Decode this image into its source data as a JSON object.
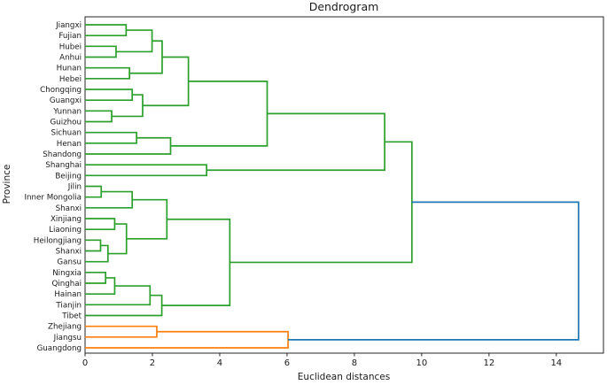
{
  "title": "Dendrogram",
  "xlabel": "Euclidean distances",
  "ylabel": "Province",
  "chart_data": {
    "type": "dendrogram",
    "orientation": "leaves-left",
    "grid": false,
    "legend": "none",
    "xlim": [
      0,
      15.4
    ],
    "x_ticks": [
      0,
      2,
      4,
      6,
      8,
      10,
      12,
      14
    ],
    "leaves": [
      "Jiangxi",
      "Fujian",
      "Hubei",
      "Anhui",
      "Hunan",
      "Hebei",
      "Chongqing",
      "Guangxi",
      "Yunnan",
      "Guizhou",
      "Sichuan",
      "Henan",
      "Shandong",
      "Shanghai",
      "Beijing",
      "Jilin",
      "Inner Mongolia",
      "Shanxi",
      "Xinjiang",
      "Liaoning",
      "Heilongjiang",
      "Shanxi",
      "Gansu",
      "Ningxia",
      "Qinghai",
      "Hainan",
      "Tianjin",
      "Tibet",
      "Zhejiang",
      "Jiangsu",
      "Guangdong"
    ],
    "merges": [
      [
        "L0",
        "L1",
        1.22,
        "green"
      ],
      [
        "L2",
        "L3",
        0.92,
        "green"
      ],
      [
        "M0",
        "M1",
        1.99,
        "green"
      ],
      [
        "L4",
        "L5",
        1.32,
        "green"
      ],
      [
        "M2",
        "M3",
        2.29,
        "green"
      ],
      [
        "L6",
        "L7",
        1.4,
        "green"
      ],
      [
        "L8",
        "L9",
        0.79,
        "green"
      ],
      [
        "M5",
        "M6",
        1.71,
        "green"
      ],
      [
        "M4",
        "M7",
        3.07,
        "green"
      ],
      [
        "L10",
        "L11",
        1.53,
        "green"
      ],
      [
        "M9",
        "L12",
        2.54,
        "green"
      ],
      [
        "M8",
        "M10",
        5.41,
        "green"
      ],
      [
        "L13",
        "L14",
        3.61,
        "green"
      ],
      [
        "M11",
        "M12",
        8.9,
        "green"
      ],
      [
        "L15",
        "L16",
        0.48,
        "green"
      ],
      [
        "M14",
        "L17",
        1.4,
        "green"
      ],
      [
        "L18",
        "L19",
        0.88,
        "green"
      ],
      [
        "L20",
        "L21",
        0.46,
        "green"
      ],
      [
        "M17",
        "L22",
        0.68,
        "green"
      ],
      [
        "M16",
        "M18",
        1.23,
        "green"
      ],
      [
        "M15",
        "M19",
        2.43,
        "green"
      ],
      [
        "L23",
        "L24",
        0.61,
        "green"
      ],
      [
        "M21",
        "L25",
        0.88,
        "green"
      ],
      [
        "M22",
        "L26",
        1.93,
        "green"
      ],
      [
        "M23",
        "L27",
        2.28,
        "green"
      ],
      [
        "M20",
        "M24",
        4.3,
        "green"
      ],
      [
        "M13",
        "M25",
        9.71,
        "green"
      ],
      [
        "L28",
        "L29",
        2.13,
        "orange"
      ],
      [
        "M27",
        "L30",
        6.03,
        "orange"
      ],
      [
        "M26",
        "M28",
        14.66,
        "blue"
      ]
    ],
    "colors": {
      "green": "#2ca02c",
      "orange": "#ff7f0e",
      "blue": "#1f77b4",
      "spine": "#262626",
      "text": "#1a1a1a"
    }
  }
}
